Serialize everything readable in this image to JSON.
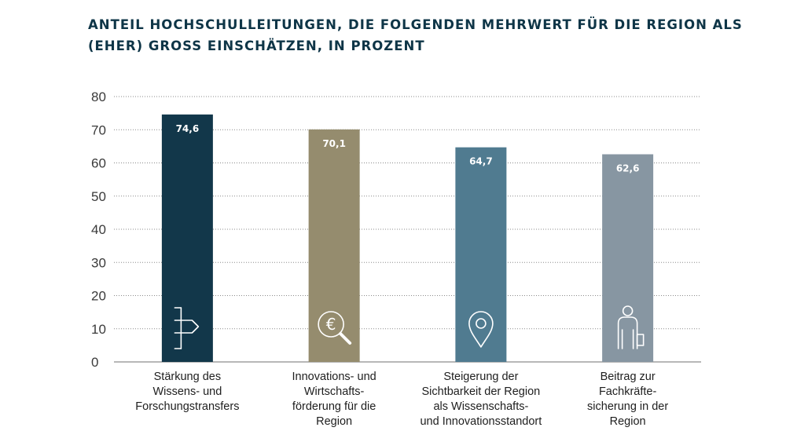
{
  "title_lines": [
    "ANTEIL HOCHSCHULLEITUNGEN, DIE FOLGENDEN MEHRWERT FÜR DIE REGION ALS",
    "(EHER) GROSS EINSCHÄTZEN, IN PROZENT"
  ],
  "chart_data": {
    "type": "bar",
    "title": "ANTEIL HOCHSCHULLEITUNGEN, DIE FOLGENDEN MEHRWERT FÜR DIE REGION ALS (EHER) GROSS EINSCHÄTZEN, IN PROZENT",
    "xlabel": "",
    "ylabel": "",
    "ylim": [
      0,
      80
    ],
    "yticks": [
      0,
      10,
      20,
      30,
      40,
      50,
      60,
      70,
      80
    ],
    "grid": true,
    "categories": [
      [
        "Stärkung des",
        "Wissens- und",
        "Forschungstransfers"
      ],
      [
        "Innovations- und",
        "Wirtschafts-",
        "förderung für die",
        "Region"
      ],
      [
        "Steigerung der",
        "Sichtbarkeit der Region",
        "als Wissenschafts-",
        "und Innovationsstandort"
      ],
      [
        "Beitrag zur",
        "Fachkräfte-",
        "sicherung in der",
        "Region"
      ]
    ],
    "values": [
      74.6,
      70.1,
      64.7,
      62.6
    ],
    "value_labels": [
      "74,6",
      "70,1",
      "64,7",
      "62,6"
    ],
    "colors": [
      "#12374a",
      "#958c6e",
      "#507b90",
      "#8796a2"
    ],
    "icons": [
      "signpost-icon",
      "euro-magnifier-icon",
      "location-pin-icon",
      "worker-icon"
    ]
  }
}
